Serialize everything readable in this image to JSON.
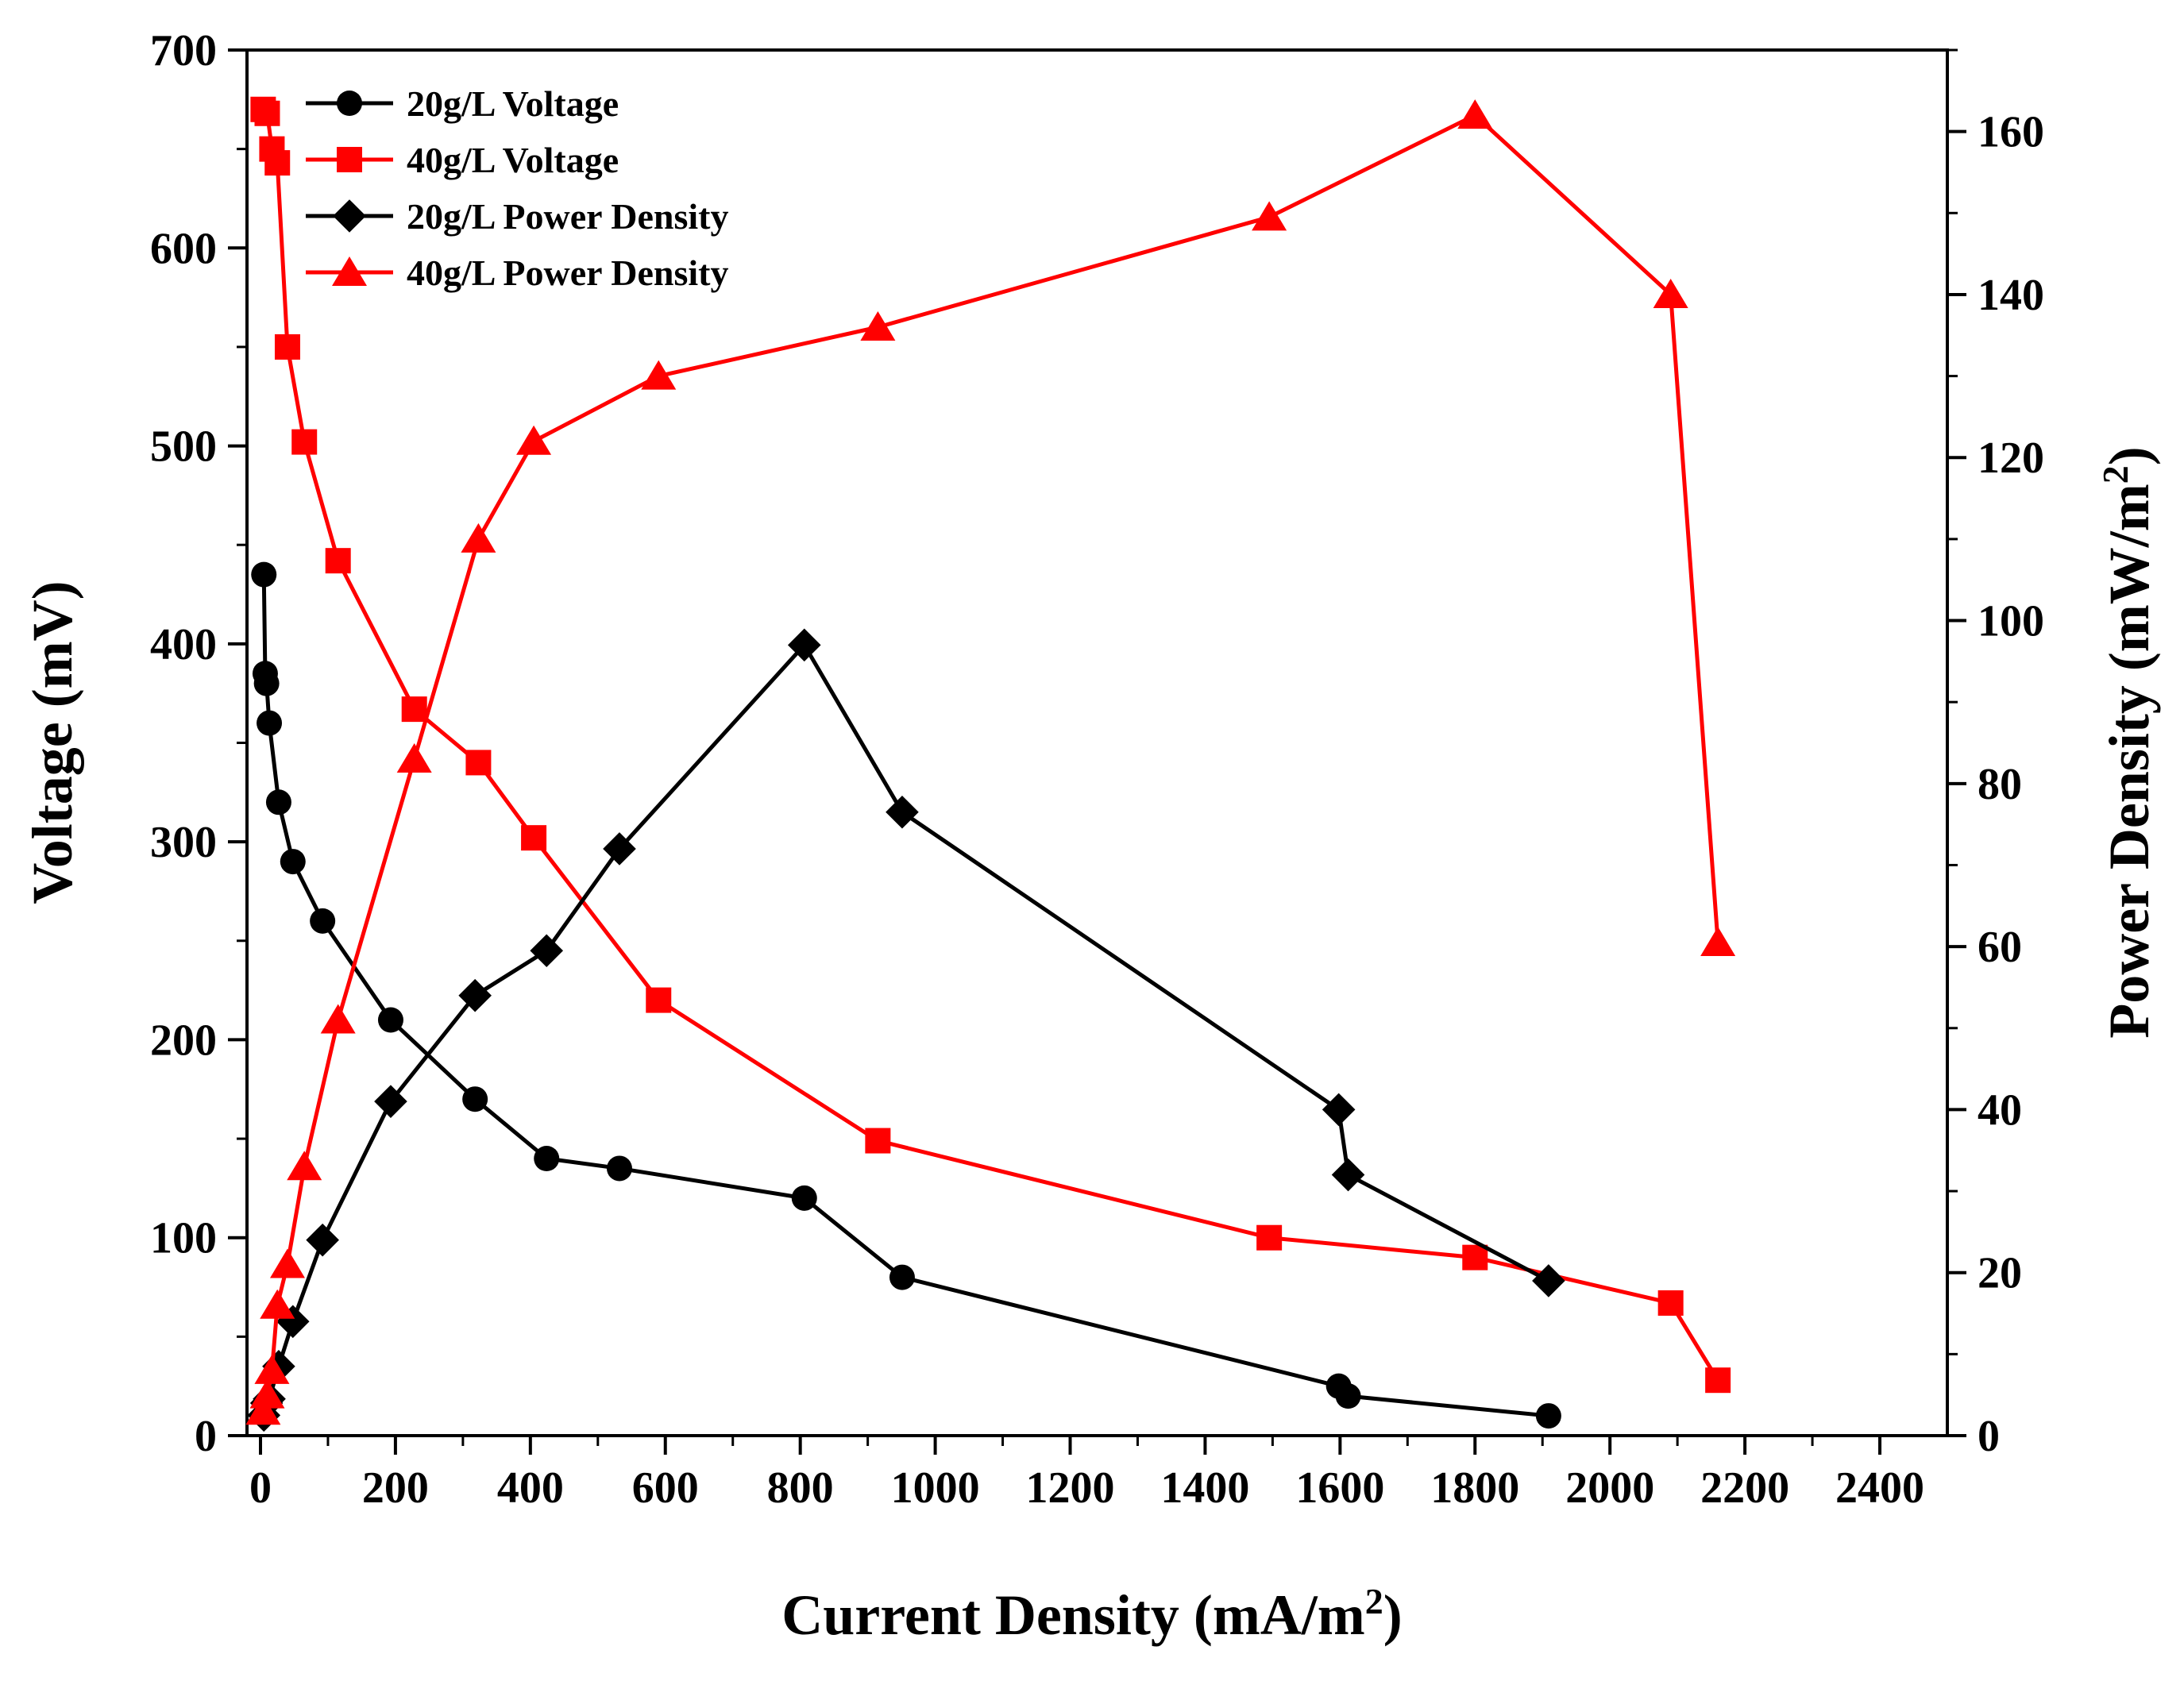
{
  "chart_data": {
    "type": "line",
    "title": "",
    "xlabel": "Current Density (mA/m",
    "xlabel_sup": "2",
    "xlabel_suffix": ")",
    "ylabel": "Voltage (mV)",
    "y2label": "Power Density (mW/m",
    "y2label_sup": "2",
    "y2label_suffix": ")",
    "xlim": [
      -20,
      2500
    ],
    "ylim": [
      0,
      700
    ],
    "y2lim": [
      0,
      170
    ],
    "x_ticks": [
      "0",
      "200",
      "400",
      "600",
      "800",
      "1000",
      "1200",
      "1400",
      "1600",
      "1800",
      "2000",
      "2200",
      "2400"
    ],
    "y_ticks": [
      "0",
      "100",
      "200",
      "300",
      "400",
      "500",
      "600",
      "700"
    ],
    "y2_ticks": [
      "0",
      "20",
      "40",
      "60",
      "80",
      "100",
      "120",
      "140",
      "160"
    ],
    "legend_position": "top-left",
    "colors": {
      "black": "#000000",
      "red": "#ff0000"
    },
    "series": [
      {
        "name": "20g/L Voltage",
        "axis": "left",
        "marker": "circle",
        "color": "#000000",
        "x": [
          5,
          7,
          9,
          13,
          27,
          48,
          92,
          193,
          318,
          424,
          532,
          806,
          951,
          1598,
          1612,
          1909
        ],
        "y": [
          435,
          385,
          380,
          360,
          320,
          290,
          260,
          210,
          170,
          140,
          135,
          120,
          80,
          25,
          20,
          10
        ]
      },
      {
        "name": "40g/L Voltage",
        "axis": "left",
        "marker": "square",
        "color": "#ff0000",
        "x": [
          4,
          10,
          17,
          25,
          40,
          65,
          115,
          228,
          323,
          405,
          590,
          915,
          1495,
          1800,
          2090,
          2160
        ],
        "y": [
          670,
          668,
          650,
          643,
          550,
          502,
          442,
          367,
          340,
          302,
          220,
          149,
          100,
          90,
          67,
          28
        ]
      },
      {
        "name": "20g/L Power Density",
        "axis": "right",
        "marker": "diamond",
        "color": "#000000",
        "x": [
          5,
          9,
          13,
          27,
          48,
          92,
          193,
          318,
          424,
          532,
          806,
          951,
          1598,
          1612,
          1909
        ],
        "y": [
          2.5,
          4,
          4.5,
          8.5,
          14,
          24,
          41,
          54,
          59.5,
          72,
          97,
          76.5,
          40,
          32,
          19
        ]
      },
      {
        "name": "40g/L Power Density",
        "axis": "right",
        "marker": "triangle",
        "color": "#ff0000",
        "x": [
          4,
          10,
          17,
          25,
          40,
          65,
          115,
          228,
          323,
          405,
          590,
          915,
          1495,
          1800,
          2090,
          2160
        ],
        "y": [
          3,
          5,
          8,
          16,
          21,
          33,
          51,
          83,
          110,
          122,
          130,
          136,
          149.5,
          162,
          140,
          60.5
        ]
      }
    ]
  }
}
